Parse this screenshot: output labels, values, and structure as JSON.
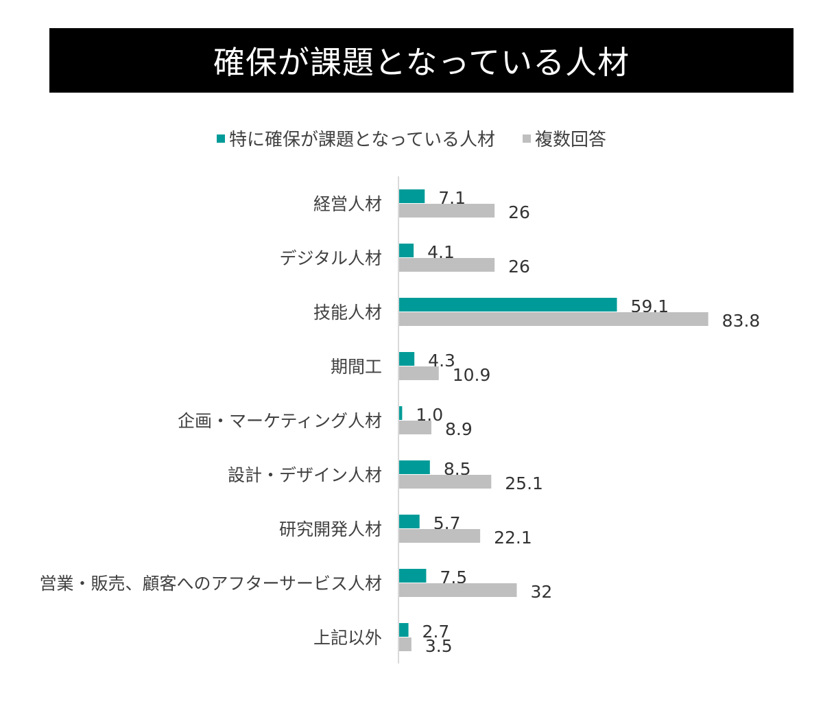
{
  "chart_data": {
    "type": "bar",
    "orientation": "horizontal",
    "title": "確保が課題となっている人材",
    "categories": [
      "経営人材",
      "デジタル人材",
      "技能人材",
      "期間工",
      "企画・マーケティング人材",
      "設計・デザイン人材",
      "研究開発人材",
      "営業・販売、顧客へのアフターサービス人材",
      "上記以外"
    ],
    "series": [
      {
        "name": "特に確保が課題となっている人材",
        "color": "#009b98",
        "values": [
          7.1,
          4.1,
          59.1,
          4.3,
          1.0,
          8.5,
          5.7,
          7.5,
          2.7
        ],
        "labels": [
          "7.1",
          "4.1",
          "59.1",
          "4.3",
          "1.0",
          "8.5",
          "5.7",
          "7.5",
          "2.7"
        ]
      },
      {
        "name": "複数回答",
        "color": "#bfbfbf",
        "values": [
          26,
          26,
          83.8,
          10.9,
          8.9,
          25.1,
          22.1,
          32,
          3.5
        ],
        "labels": [
          "26",
          "26",
          "83.8",
          "10.9",
          "8.9",
          "25.1",
          "22.1",
          "32",
          "3.5"
        ]
      }
    ],
    "xlim": [
      0,
      100
    ],
    "grid": false,
    "legend_position": "top"
  }
}
